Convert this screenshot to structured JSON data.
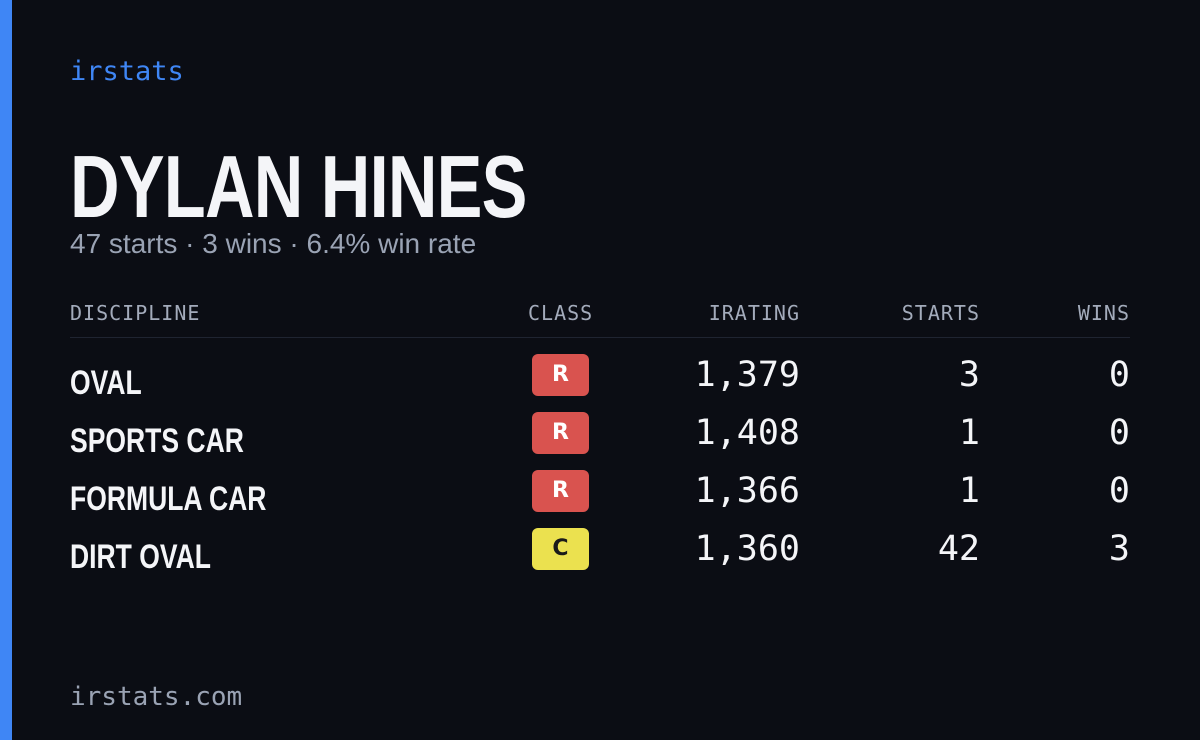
{
  "brand": "irstats",
  "driver": {
    "name": "DYLAN HINES",
    "summary": "47 starts · 3 wins · 6.4% win rate"
  },
  "table": {
    "headers": [
      "DISCIPLINE",
      "CLASS",
      "IRATING",
      "STARTS",
      "WINS"
    ],
    "rows": [
      {
        "discipline": "OVAL",
        "class": "R",
        "badge_color": "#d9534f",
        "badge_text_color": "#ffffff",
        "irating": "1,379",
        "starts": 3,
        "wins": 0
      },
      {
        "discipline": "SPORTS CAR",
        "class": "R",
        "badge_color": "#d9534f",
        "badge_text_color": "#ffffff",
        "irating": "1,408",
        "starts": 1,
        "wins": 0
      },
      {
        "discipline": "FORMULA CAR",
        "class": "R",
        "badge_color": "#d9534f",
        "badge_text_color": "#ffffff",
        "irating": "1,366",
        "starts": 1,
        "wins": 0
      },
      {
        "discipline": "DIRT OVAL",
        "class": "C",
        "badge_color": "#ebe14f",
        "badge_text_color": "#1a1a1a",
        "irating": "1,360",
        "starts": 42,
        "wins": 3
      }
    ]
  },
  "footer": "irstats.com"
}
